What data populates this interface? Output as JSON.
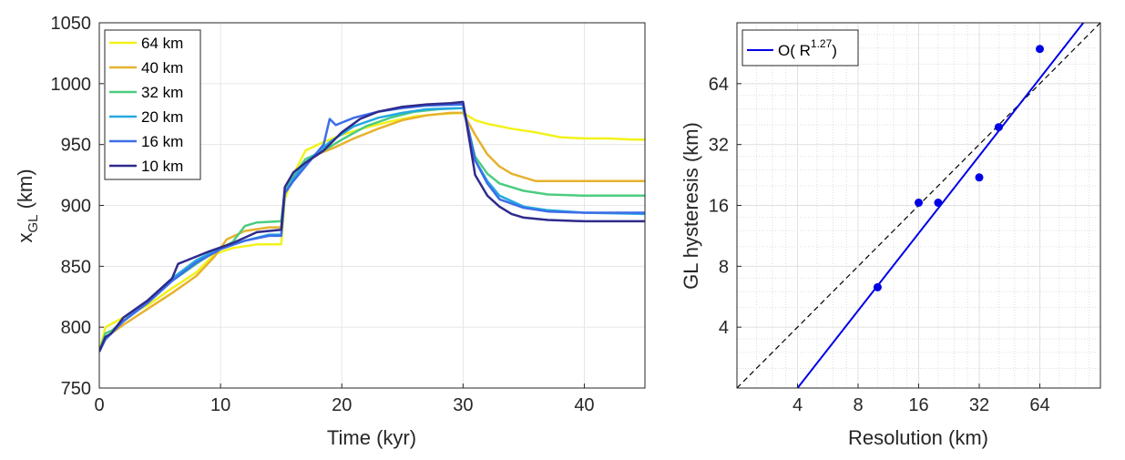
{
  "chart_data": [
    {
      "type": "line",
      "xlabel": "Time (kyr)",
      "ylabel_main": "x",
      "ylabel_sub": "GL",
      "ylabel_tail": " (km)",
      "xlim": [
        0,
        45
      ],
      "ylim": [
        750,
        1050
      ],
      "xticks": [
        0,
        10,
        20,
        30,
        40
      ],
      "yticks": [
        750,
        800,
        850,
        900,
        950,
        1000,
        1050
      ],
      "grid": true,
      "legend_position": "top-left",
      "series": [
        {
          "name": "64 km",
          "color": "#f2f21a",
          "x": [
            0,
            0.5,
            2,
            4,
            6,
            8,
            9.5,
            11,
            13,
            14.5,
            15,
            15.3,
            16,
            17,
            18.5,
            20,
            22,
            24,
            26,
            28,
            30,
            31,
            32,
            34,
            36,
            38,
            40,
            42,
            44,
            45
          ],
          "y": [
            780,
            800,
            808,
            818,
            832,
            845,
            860,
            865,
            868,
            868,
            868,
            905,
            925,
            945,
            952,
            958,
            964,
            969,
            973,
            975,
            976,
            970,
            967,
            963,
            960,
            956,
            955,
            955,
            954,
            954
          ]
        },
        {
          "name": "40 km",
          "color": "#e6b22e",
          "x": [
            0,
            0.5,
            1,
            2,
            4,
            6,
            8,
            9.5,
            10.5,
            12,
            14,
            15,
            15.3,
            16,
            17,
            18,
            19.5,
            21,
            23,
            25,
            27,
            29,
            30,
            31,
            32,
            33,
            34,
            35,
            36,
            38,
            40,
            42,
            45
          ],
          "y": [
            780,
            790,
            795,
            802,
            815,
            828,
            842,
            858,
            872,
            879,
            882,
            882,
            912,
            925,
            935,
            942,
            948,
            955,
            963,
            970,
            974,
            976,
            976,
            958,
            942,
            932,
            926,
            923,
            920,
            920,
            920,
            920,
            920
          ]
        },
        {
          "name": "32 km",
          "color": "#4ccc80",
          "x": [
            0,
            0.5,
            1,
            2,
            4,
            6,
            8,
            9.5,
            11,
            12,
            13,
            15,
            15.3,
            16,
            17,
            18.5,
            20,
            22,
            24,
            26,
            28,
            30,
            30.5,
            31,
            32,
            33,
            35,
            37,
            40,
            45
          ],
          "y": [
            780,
            795,
            797,
            805,
            820,
            838,
            852,
            862,
            870,
            883,
            886,
            887,
            912,
            924,
            938,
            945,
            954,
            965,
            972,
            977,
            979,
            980,
            960,
            940,
            926,
            918,
            912,
            909,
            908,
            908
          ]
        },
        {
          "name": "20 km",
          "color": "#24a9e0",
          "x": [
            0,
            0.5,
            2,
            4,
            6,
            8,
            10,
            12,
            14,
            15,
            15.3,
            16,
            17,
            19,
            21,
            23,
            25,
            27,
            30,
            30.5,
            31,
            32,
            33,
            35,
            37,
            40,
            45
          ],
          "y": [
            780,
            790,
            805,
            822,
            840,
            855,
            865,
            871,
            876,
            876,
            910,
            922,
            935,
            952,
            965,
            972,
            976,
            979,
            980,
            960,
            937,
            920,
            908,
            899,
            896,
            894,
            893
          ]
        },
        {
          "name": "16 km",
          "color": "#3d6de8",
          "x": [
            0,
            0.5,
            2,
            4,
            6,
            8,
            10,
            12,
            14,
            15,
            15.3,
            16,
            17,
            18.5,
            19,
            19.5,
            20,
            21,
            23,
            25,
            27,
            30,
            30.5,
            31,
            32,
            33,
            35,
            37,
            40,
            45
          ],
          "y": [
            780,
            790,
            805,
            820,
            838,
            853,
            864,
            871,
            875,
            875,
            910,
            920,
            932,
            950,
            971,
            966,
            968,
            972,
            977,
            980,
            982,
            983,
            960,
            937,
            918,
            905,
            898,
            895,
            894,
            894
          ]
        },
        {
          "name": "10 km",
          "color": "#2f2a8c",
          "x": [
            0,
            0.5,
            1,
            2,
            4,
            6,
            6.5,
            7,
            9,
            11,
            13,
            15,
            15.3,
            16,
            17,
            18.5,
            20,
            21.5,
            23,
            25,
            27,
            29,
            30,
            30.5,
            31,
            32,
            33,
            34,
            35,
            37,
            40,
            45
          ],
          "y": [
            780,
            792,
            795,
            808,
            822,
            840,
            852,
            854,
            862,
            869,
            878,
            880,
            915,
            927,
            935,
            945,
            960,
            971,
            977,
            981,
            983,
            984,
            985,
            955,
            925,
            908,
            899,
            893,
            890,
            888,
            887,
            887
          ]
        }
      ]
    },
    {
      "type": "scatter",
      "xlabel": "Resolution (km)",
      "ylabel": "GL hysteresis (km)",
      "xscale": "log2",
      "yscale": "log2",
      "xlim": [
        2,
        128
      ],
      "ylim": [
        2,
        128
      ],
      "xticks": [
        4,
        8,
        16,
        32,
        64
      ],
      "yticks": [
        4,
        8,
        16,
        32,
        64
      ],
      "grid": true,
      "minor_grid": true,
      "legend_position": "top-left",
      "points": {
        "color": "#0000e6",
        "x": [
          10,
          16,
          20,
          32,
          40,
          64
        ],
        "y": [
          6.3,
          16.5,
          16.5,
          22,
          39,
          95
        ]
      },
      "fit": {
        "legend_main": "O( R",
        "legend_exp": "1.27",
        "legend_tail": ")",
        "color": "#0000e6",
        "exponent": 1.27,
        "x": [
          4,
          113
        ],
        "y": [
          2,
          140
        ]
      },
      "reference_line": {
        "style": "dashed",
        "color": "#000000",
        "slope": 1
      }
    }
  ]
}
